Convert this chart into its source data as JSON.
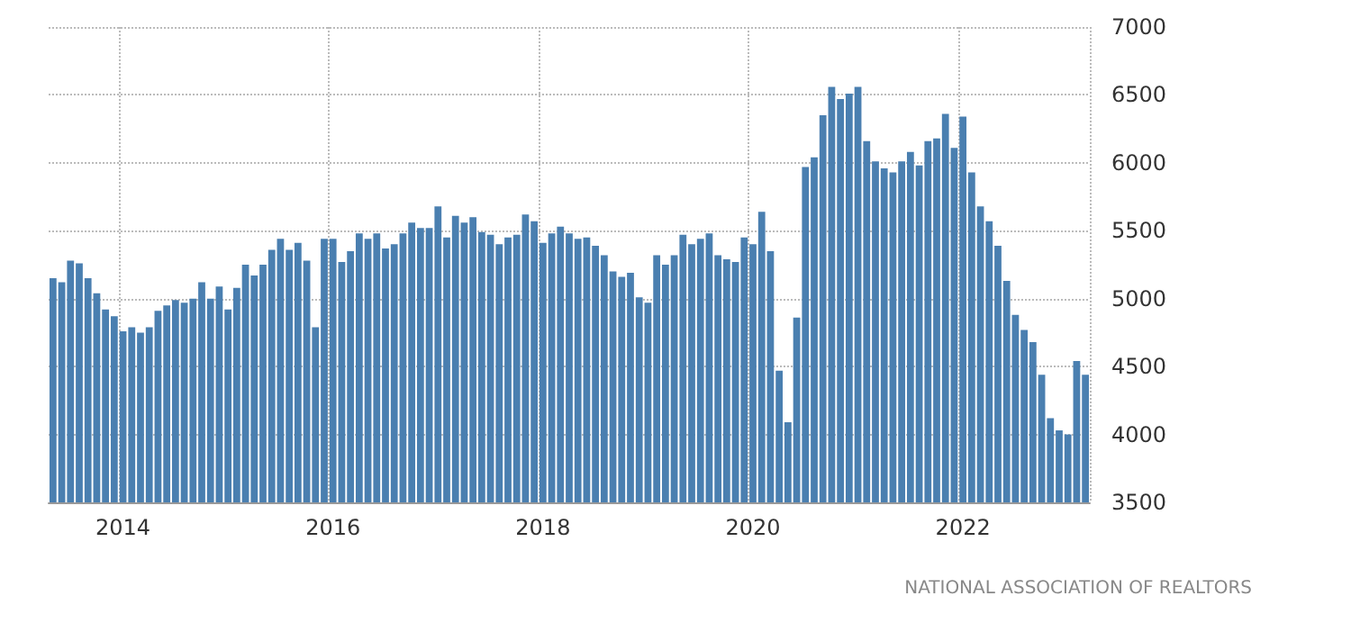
{
  "chart_data": {
    "type": "bar",
    "categories": [
      null,
      null,
      null,
      null,
      null,
      null,
      null,
      null,
      "2014",
      null,
      null,
      null,
      null,
      null,
      null,
      null,
      null,
      null,
      null,
      null,
      null,
      null,
      null,
      null,
      null,
      null,
      null,
      null,
      null,
      null,
      null,
      null,
      "2016",
      null,
      null,
      null,
      null,
      null,
      null,
      null,
      null,
      null,
      null,
      null,
      null,
      null,
      null,
      null,
      null,
      null,
      null,
      null,
      null,
      null,
      null,
      null,
      "2018",
      null,
      null,
      null,
      null,
      null,
      null,
      null,
      null,
      null,
      null,
      null,
      null,
      null,
      null,
      null,
      null,
      null,
      null,
      null,
      null,
      null,
      null,
      null,
      "2020",
      null,
      null,
      null,
      null,
      null,
      null,
      null,
      null,
      null,
      null,
      null,
      null,
      null,
      null,
      null,
      null,
      null,
      null,
      null,
      null,
      null,
      null,
      null,
      "2022",
      null,
      null,
      null,
      null,
      null,
      null,
      null,
      null,
      null,
      null,
      null,
      null,
      null,
      null
    ],
    "values": [
      5150,
      5120,
      5280,
      5260,
      5150,
      5040,
      4920,
      4870,
      4760,
      4790,
      4750,
      4790,
      4910,
      4950,
      4990,
      4970,
      5000,
      5120,
      5000,
      5090,
      4920,
      5080,
      5250,
      5170,
      5250,
      5360,
      5440,
      5360,
      5410,
      5280,
      4790,
      5440,
      5440,
      5270,
      5350,
      5480,
      5440,
      5480,
      5370,
      5400,
      5480,
      5560,
      5520,
      5520,
      5680,
      5450,
      5610,
      5560,
      5600,
      5490,
      5470,
      5400,
      5450,
      5470,
      5620,
      5570,
      5410,
      5480,
      5530,
      5480,
      5440,
      5450,
      5390,
      5320,
      5200,
      5160,
      5190,
      5010,
      4970,
      5320,
      5250,
      5320,
      5470,
      5400,
      5440,
      5480,
      5320,
      5290,
      5270,
      5450,
      5400,
      5640,
      5350,
      4470,
      4090,
      4860,
      5970,
      6040,
      6350,
      6560,
      6470,
      6510,
      6560,
      6160,
      6010,
      5960,
      5930,
      6010,
      6080,
      5980,
      6160,
      6180,
      6360,
      6110,
      6340,
      5930,
      5680,
      5570,
      5390,
      5130,
      4880,
      4770,
      4680,
      4440,
      4120,
      4030,
      4000,
      4540,
      4440
    ],
    "color": "#4a7fb0",
    "ylim": [
      3500,
      7000
    ],
    "yticks": [
      3500,
      4000,
      4500,
      5000,
      5500,
      6000,
      6500,
      7000
    ],
    "grid": true,
    "annotations": [
      "NATIONAL ASSOCIATION OF REALTORS"
    ]
  }
}
